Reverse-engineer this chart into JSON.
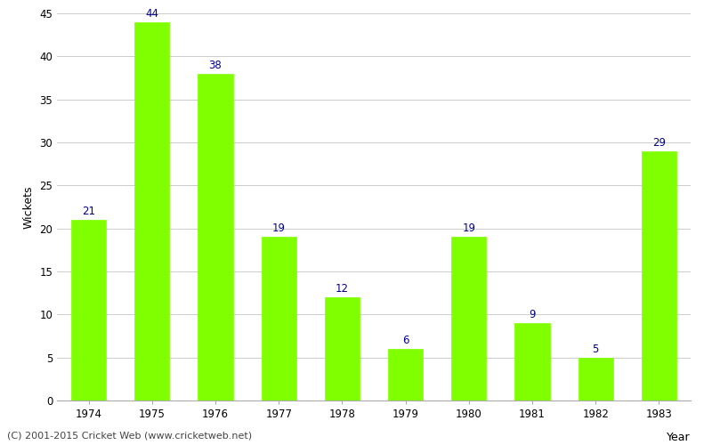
{
  "years": [
    "1974",
    "1975",
    "1976",
    "1977",
    "1978",
    "1979",
    "1980",
    "1981",
    "1982",
    "1983"
  ],
  "wickets": [
    21,
    44,
    38,
    19,
    12,
    6,
    19,
    9,
    5,
    29
  ],
  "bar_color": "#7fff00",
  "label_color": "#00008b",
  "ylabel": "Wickets",
  "xlabel": "Year",
  "ylim": [
    0,
    45
  ],
  "yticks": [
    0,
    5,
    10,
    15,
    20,
    25,
    30,
    35,
    40,
    45
  ],
  "footer": "(C) 2001-2015 Cricket Web (www.cricketweb.net)",
  "bg_color": "#ffffff",
  "grid_color": "#cccccc",
  "label_fontsize": 8.5,
  "axis_label_fontsize": 9,
  "tick_fontsize": 8.5,
  "footer_fontsize": 8
}
